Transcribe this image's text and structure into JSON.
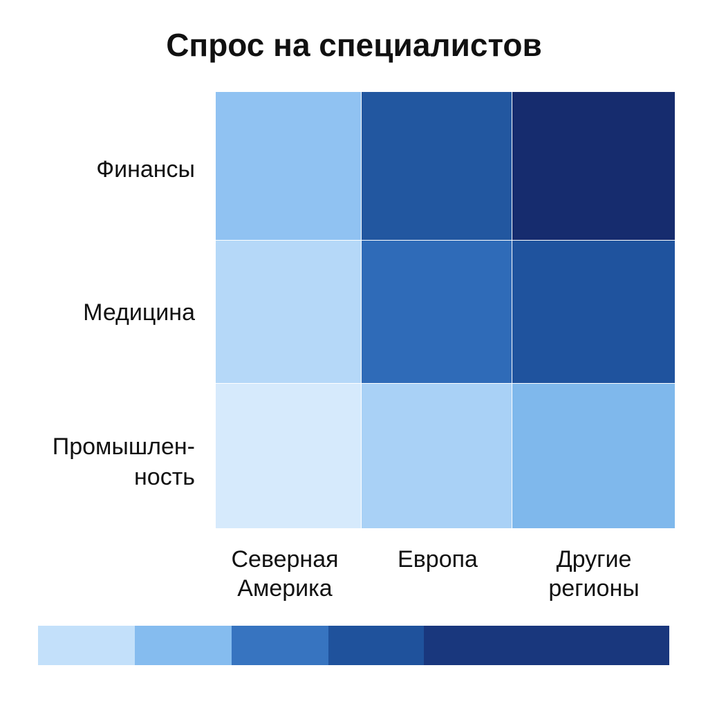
{
  "chart_data": {
    "type": "heatmap",
    "title": "Спрос на специалистов",
    "rows": [
      "Финансы",
      "Медицина",
      "Промышлен-\nность"
    ],
    "columns": [
      "Северная\nАмерика",
      "Европа",
      "Другие\nрегионы"
    ],
    "cell_colors": [
      [
        "#90c2f2",
        "#2257a0",
        "#162c6e"
      ],
      [
        "#b5d8f8",
        "#2f6bb8",
        "#1f539e"
      ],
      [
        "#d6eafc",
        "#a9d1f6",
        "#7fb8ec"
      ]
    ],
    "legend": {
      "placement": "bottom",
      "colors": [
        "#c3e0fa",
        "#85bcef",
        "#3774c0",
        "#1f529c",
        "#19377d"
      ]
    },
    "grid": false
  }
}
